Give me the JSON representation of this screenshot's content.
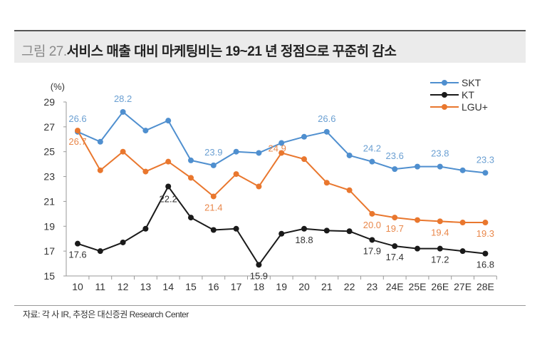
{
  "header": {
    "figure_no": "그림 27.",
    "title": "서비스 매출 대비 마케팅비는 19~21 년 정점으로 꾸준히 감소"
  },
  "footer": {
    "source": "자료: 각 사 IR, 추정은 대신증권 Research Center"
  },
  "chart_data": {
    "type": "line",
    "title": "서비스 매출 대비 마케팅비는 19~21 년 정점으로 꾸준히 감소",
    "ylabel": "(%)",
    "xlabel": "",
    "ylim": [
      15,
      29
    ],
    "yticks": [
      15,
      17,
      19,
      21,
      23,
      25,
      27,
      29
    ],
    "grid": false,
    "legend": "top-right",
    "categories": [
      "10",
      "11",
      "12",
      "13",
      "14",
      "15",
      "16",
      "17",
      "18",
      "19",
      "20",
      "21",
      "22",
      "23",
      "24E",
      "25E",
      "26E",
      "27E",
      "28E"
    ],
    "series": [
      {
        "name": "SKT",
        "color": "#4f8fcf",
        "label_color": "#6a9fd2",
        "values": [
          26.6,
          25.8,
          28.2,
          26.7,
          27.5,
          24.3,
          23.9,
          25.0,
          24.9,
          25.7,
          26.2,
          26.6,
          24.7,
          24.2,
          23.6,
          23.8,
          23.8,
          23.5,
          23.3
        ],
        "labels": [
          "26.6",
          null,
          "28.2",
          null,
          null,
          null,
          "23.9",
          null,
          null,
          null,
          null,
          "26.6",
          null,
          "24.2",
          "23.6",
          null,
          "23.8",
          null,
          "23.3"
        ]
      },
      {
        "name": "KT",
        "color": "#1a1a1a",
        "label_color": "#333333",
        "values": [
          17.6,
          17.0,
          17.7,
          18.8,
          22.2,
          19.7,
          18.7,
          18.8,
          15.9,
          18.4,
          18.8,
          18.65,
          18.6,
          17.9,
          17.4,
          17.2,
          17.2,
          17.0,
          16.8
        ],
        "labels": [
          "17.6",
          null,
          null,
          null,
          "22.2",
          null,
          null,
          null,
          "15.9",
          null,
          "18.8",
          null,
          null,
          "17.9",
          "17.4",
          null,
          "17.2",
          null,
          "16.8"
        ]
      },
      {
        "name": "LGU+",
        "color": "#e9772e",
        "label_color": "#e9874a",
        "values": [
          26.7,
          23.5,
          25.0,
          23.4,
          24.2,
          22.9,
          21.4,
          23.2,
          22.2,
          24.9,
          24.4,
          22.5,
          21.9,
          20.0,
          19.7,
          19.5,
          19.4,
          19.3,
          19.3
        ],
        "labels": [
          "26.7",
          null,
          null,
          null,
          null,
          null,
          "21.4",
          null,
          null,
          "24.9",
          null,
          null,
          null,
          "20.0",
          "19.7",
          null,
          "19.4",
          null,
          "19.3"
        ]
      }
    ]
  }
}
